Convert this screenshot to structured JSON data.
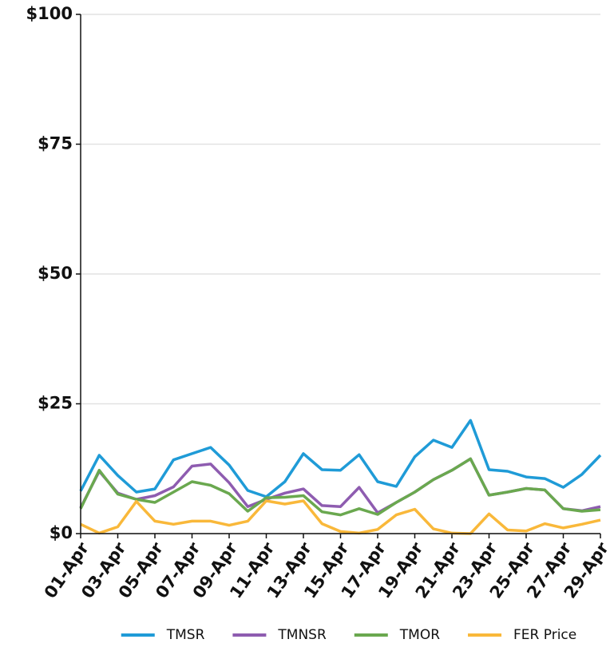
{
  "chart_data": {
    "type": "line",
    "categories": [
      "01-Apr",
      null,
      "03-Apr",
      null,
      "05-Apr",
      null,
      "07-Apr",
      null,
      "09-Apr",
      null,
      "11-Apr",
      null,
      "13-Apr",
      null,
      "15-Apr",
      null,
      "17-Apr",
      null,
      "19-Apr",
      null,
      "21-Apr",
      null,
      "23-Apr",
      null,
      "25-Apr",
      null,
      "27-Apr",
      null,
      "29-Apr"
    ],
    "series": [
      {
        "name": "TMSR",
        "color": "#1f9bd7",
        "values": [
          8.2,
          15.1,
          11.2,
          8.0,
          8.6,
          14.2,
          15.4,
          16.6,
          13.2,
          8.3,
          7.1,
          10.0,
          15.4,
          12.3,
          12.2,
          15.2,
          10.0,
          9.1,
          14.8,
          18.0,
          16.6,
          21.8,
          12.3,
          12.0,
          10.9,
          10.6,
          8.9,
          11.4,
          15.1
        ]
      },
      {
        "name": "TMNSR",
        "color": "#8e5cb0",
        "values": [
          5.0,
          12.0,
          7.8,
          6.6,
          7.3,
          9.0,
          13.0,
          13.4,
          9.8,
          5.2,
          6.6,
          7.8,
          8.6,
          5.4,
          5.2,
          8.9,
          4.0,
          6.0,
          8.0,
          10.4,
          12.2,
          14.4,
          7.4,
          8.0,
          8.7,
          8.4,
          4.8,
          4.4,
          5.2
        ]
      },
      {
        "name": "TMOR",
        "color": "#6aa84f",
        "values": [
          4.8,
          12.2,
          7.6,
          6.6,
          6.0,
          8.0,
          10.0,
          9.3,
          7.7,
          4.3,
          6.9,
          7.0,
          7.3,
          4.2,
          3.6,
          4.8,
          3.7,
          6.0,
          8.0,
          10.4,
          12.2,
          14.4,
          7.4,
          8.0,
          8.7,
          8.4,
          4.8,
          4.3,
          4.6
        ]
      },
      {
        "name": "FER Price",
        "color": "#f9b83a",
        "values": [
          1.8,
          0.1,
          1.3,
          6.2,
          2.4,
          1.8,
          2.4,
          2.4,
          1.6,
          2.4,
          6.3,
          5.7,
          6.3,
          1.9,
          0.4,
          0.1,
          0.8,
          3.6,
          4.7,
          0.9,
          0.1,
          0.0,
          3.8,
          0.7,
          0.5,
          1.9,
          1.1,
          1.8,
          2.6
        ]
      }
    ],
    "ylim": [
      0,
      100
    ],
    "yticks": [
      {
        "value": 0,
        "label": "$0"
      },
      {
        "value": 25,
        "label": "$25"
      },
      {
        "value": 50,
        "label": "$50"
      },
      {
        "value": 75,
        "label": "$75"
      },
      {
        "value": 100,
        "label": "$100"
      }
    ],
    "grid": true,
    "legend": "bottom"
  }
}
